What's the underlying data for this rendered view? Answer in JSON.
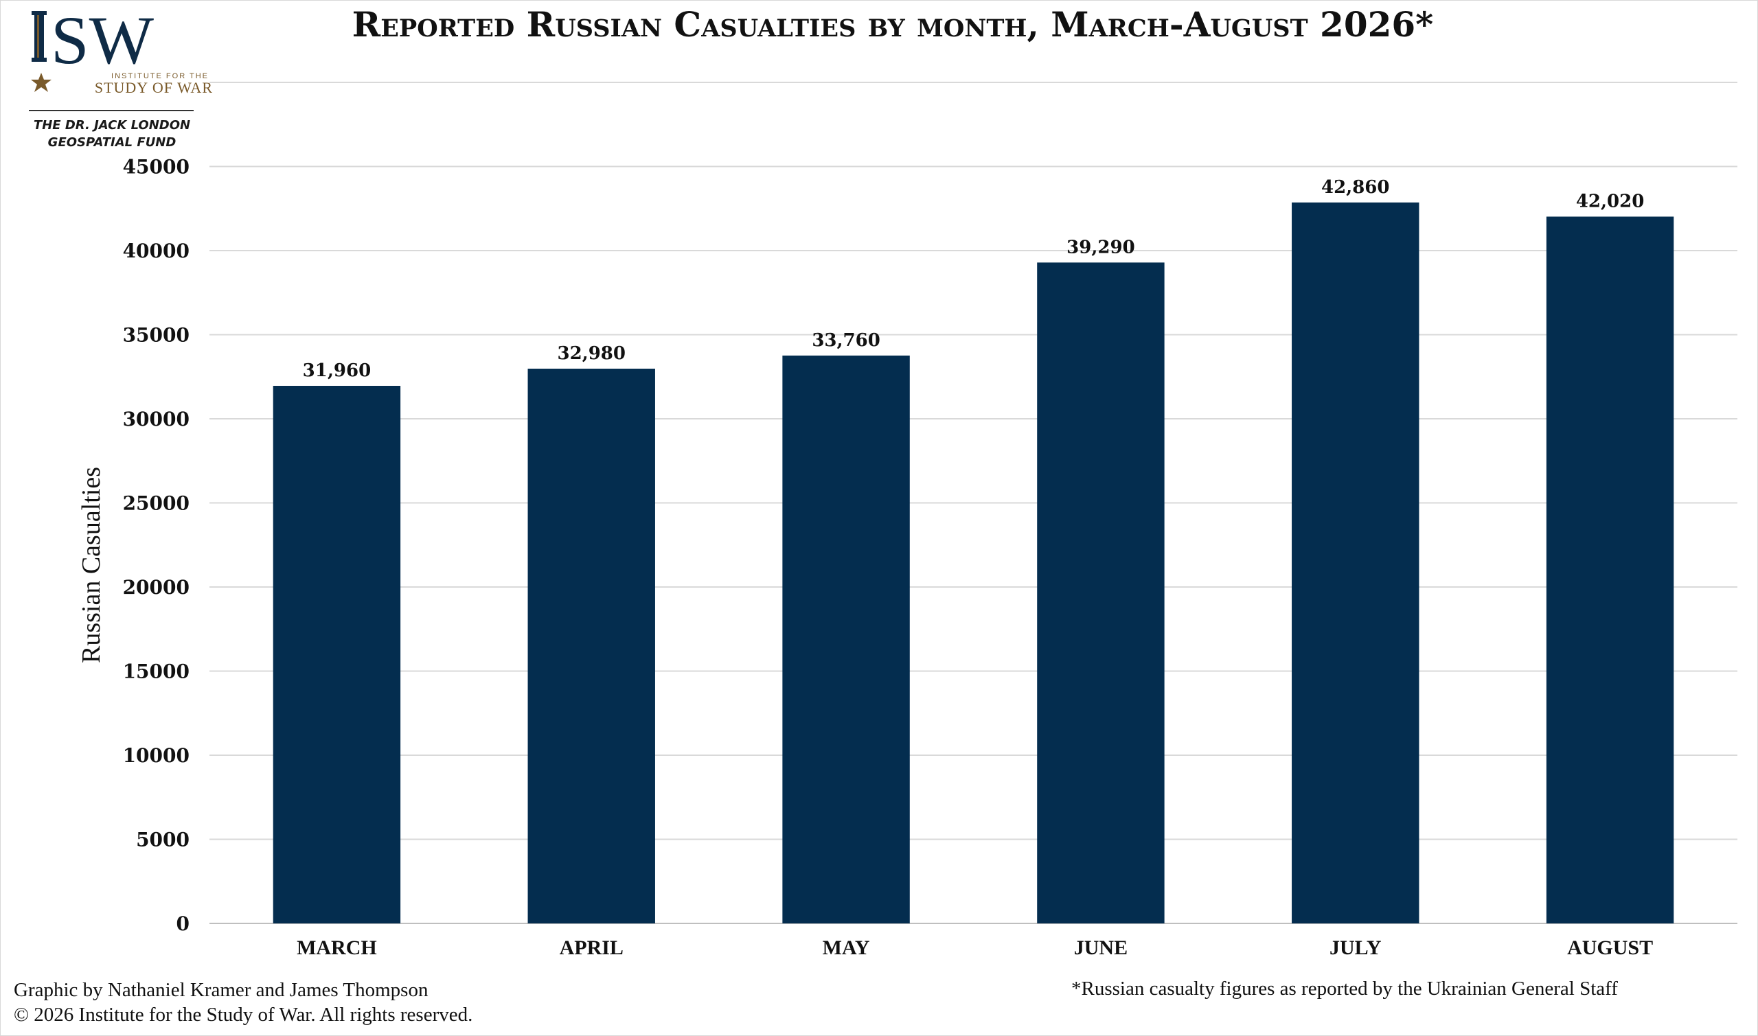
{
  "logo": {
    "acronym": "ISW",
    "org_top": "INSTITUTE FOR THE",
    "org_bottom": "STUDY OF WAR",
    "fund_line1": "THE DR. JACK LONDON",
    "fund_line2": "GEOSPATIAL FUND",
    "colors": {
      "navy": "#0f2b46",
      "gold": "#7a5a2a"
    }
  },
  "title": "Reported Russian Casualties by month, March-August 2026*",
  "credits": {
    "line1": "Graphic by Nathaniel Kramer and James Thompson",
    "line2": "© 2026 Institute for the Study of War. All rights reserved."
  },
  "footnote": "*Russian casualty figures as reported by the Ukrainian General Staff",
  "chart_data": {
    "type": "bar",
    "title": "Reported Russian Casualties by month, March-August 2026*",
    "xlabel": "",
    "ylabel": "Russian Casualties",
    "categories": [
      "MARCH",
      "APRIL",
      "MAY",
      "JUNE",
      "JULY",
      "AUGUST"
    ],
    "values": [
      31960,
      32980,
      33760,
      39290,
      42860,
      42020
    ],
    "value_labels": [
      "31,960",
      "32,980",
      "33,760",
      "39,290",
      "42,860",
      "42,020"
    ],
    "ylim": [
      0,
      50000
    ],
    "yticks": [
      0,
      5000,
      10000,
      15000,
      20000,
      25000,
      30000,
      35000,
      40000,
      45000
    ],
    "gridlines": [
      5000,
      10000,
      15000,
      20000,
      25000,
      30000,
      35000,
      40000,
      45000,
      50000
    ],
    "grid": true,
    "legend": "none",
    "colors": {
      "bar": "#042d4f",
      "grid": "#d9d9d9",
      "axis": "#bfbfbf"
    }
  }
}
